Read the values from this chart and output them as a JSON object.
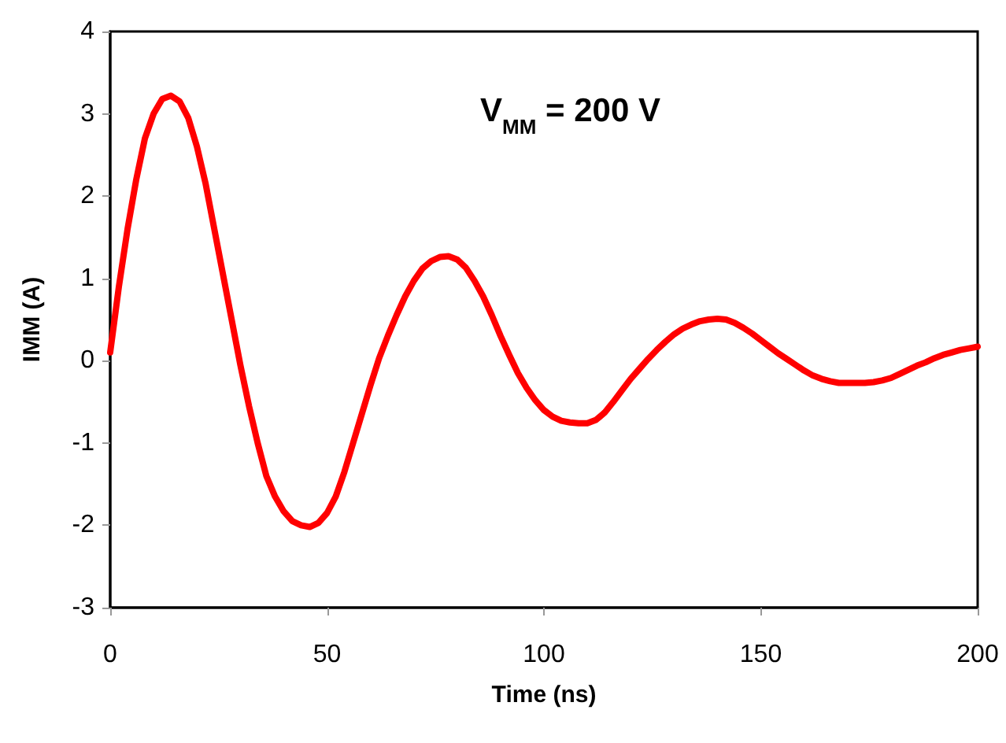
{
  "chart_data": {
    "type": "line",
    "xlabel": "Time (ns)",
    "ylabel": "IMM (A)",
    "annotations": [
      "V$_{MM}$ = 200 V"
    ],
    "x": [
      0,
      2,
      4,
      6,
      8,
      10,
      12,
      14,
      16,
      18,
      20,
      22,
      24,
      26,
      28,
      30,
      32,
      34,
      36,
      38,
      40,
      42,
      44,
      46,
      48,
      50,
      52,
      54,
      56,
      58,
      60,
      62,
      64,
      66,
      68,
      70,
      72,
      74,
      76,
      78,
      80,
      82,
      84,
      86,
      88,
      90,
      92,
      94,
      96,
      98,
      100,
      102,
      104,
      106,
      108,
      110,
      112,
      114,
      116,
      118,
      120,
      122,
      124,
      126,
      128,
      130,
      132,
      134,
      136,
      138,
      140,
      142,
      144,
      146,
      148,
      150,
      152,
      154,
      156,
      158,
      160,
      162,
      164,
      166,
      168,
      170,
      172,
      174,
      176,
      178,
      180,
      182,
      184,
      186,
      188,
      190,
      192,
      194,
      196,
      198,
      200
    ],
    "series": [
      {
        "color": "#ff0000",
        "values": [
          0.1,
          0.9,
          1.6,
          2.2,
          2.7,
          3.0,
          3.18,
          3.22,
          3.15,
          2.95,
          2.6,
          2.15,
          1.6,
          1.05,
          0.5,
          -0.05,
          -0.55,
          -1.0,
          -1.4,
          -1.65,
          -1.83,
          -1.95,
          -2.0,
          -2.02,
          -1.97,
          -1.85,
          -1.65,
          -1.35,
          -1.0,
          -0.65,
          -0.3,
          0.03,
          0.3,
          0.55,
          0.78,
          0.97,
          1.12,
          1.21,
          1.26,
          1.27,
          1.23,
          1.13,
          0.97,
          0.78,
          0.55,
          0.3,
          0.07,
          -0.15,
          -0.33,
          -0.48,
          -0.6,
          -0.68,
          -0.73,
          -0.75,
          -0.76,
          -0.76,
          -0.72,
          -0.63,
          -0.5,
          -0.36,
          -0.22,
          -0.1,
          0.02,
          0.13,
          0.23,
          0.32,
          0.39,
          0.44,
          0.48,
          0.5,
          0.51,
          0.5,
          0.46,
          0.4,
          0.33,
          0.25,
          0.17,
          0.09,
          0.02,
          -0.05,
          -0.12,
          -0.18,
          -0.22,
          -0.25,
          -0.27,
          -0.27,
          -0.27,
          -0.27,
          -0.26,
          -0.24,
          -0.21,
          -0.16,
          -0.11,
          -0.06,
          -0.02,
          0.03,
          0.07,
          0.1,
          0.13,
          0.15,
          0.17
        ]
      }
    ],
    "xlim": [
      0,
      200
    ],
    "xticks": [
      0,
      50,
      100,
      150,
      200
    ],
    "ylim": [
      -3,
      4
    ],
    "yticks": [
      -3,
      -2,
      -1,
      0,
      1,
      2,
      3,
      4
    ],
    "grid": false,
    "marker": "none",
    "line_style": "solid"
  }
}
